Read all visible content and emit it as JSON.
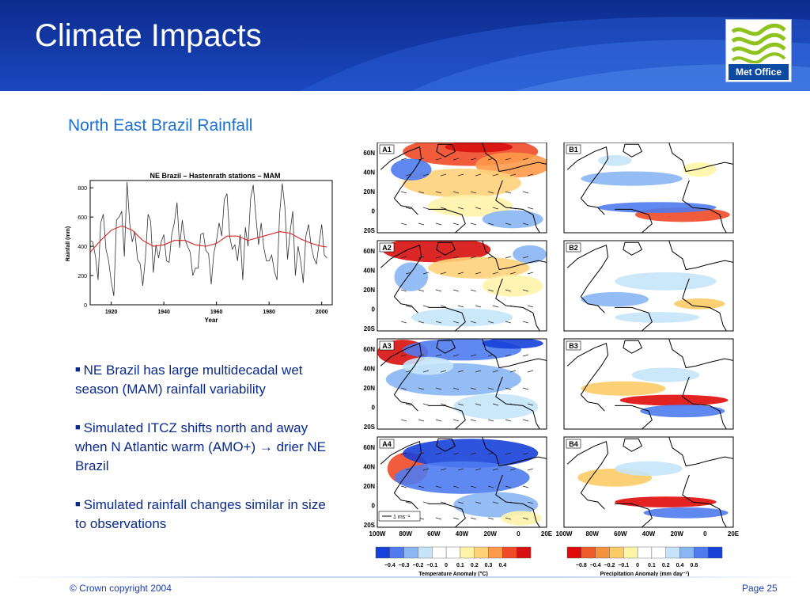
{
  "slide": {
    "title": "Climate Impacts",
    "subtitle": "North East Brazil Rainfall",
    "logo_text": "Met Office",
    "footer_copyright": "© Crown copyright 2004",
    "footer_page": "Page 25"
  },
  "bullets": [
    "NE Brazil has large multidecadal wet season (MAM) rainfall variability",
    "Simulated ITCZ shifts north and away when N Atlantic warm (AMO+) → drier NE Brazil",
    "Simulated rainfall changes similar in size to observations"
  ],
  "chart_data": {
    "type": "line",
    "title": "NE Brazil – Hastenrath stations – MAM",
    "xlabel": "Year",
    "ylabel": "Rainfall (mm)",
    "xlim": [
      1912,
      2004
    ],
    "ylim": [
      0,
      850
    ],
    "xticks": [
      1920,
      1940,
      1960,
      1980,
      2000
    ],
    "yticks": [
      0,
      200,
      400,
      600,
      800
    ],
    "grid": false,
    "series": [
      {
        "values": [
          [
            1912,
            440
          ],
          [
            1913,
            430
          ],
          [
            1914,
            330
          ],
          [
            1915,
            170
          ],
          [
            1916,
            560
          ],
          [
            1917,
            620
          ],
          [
            1918,
            380
          ],
          [
            1919,
            300
          ],
          [
            1920,
            160
          ],
          [
            1921,
            60
          ],
          [
            1922,
            580
          ],
          [
            1923,
            600
          ],
          [
            1924,
            640
          ],
          [
            1925,
            330
          ],
          [
            1926,
            840
          ],
          [
            1927,
            560
          ],
          [
            1928,
            430
          ],
          [
            1929,
            500
          ],
          [
            1930,
            310
          ],
          [
            1931,
            280
          ],
          [
            1932,
            130
          ],
          [
            1933,
            320
          ],
          [
            1934,
            620
          ],
          [
            1935,
            570
          ],
          [
            1936,
            220
          ],
          [
            1937,
            410
          ],
          [
            1938,
            320
          ],
          [
            1939,
            430
          ],
          [
            1940,
            480
          ],
          [
            1941,
            300
          ],
          [
            1942,
            290
          ],
          [
            1943,
            480
          ],
          [
            1944,
            560
          ],
          [
            1945,
            700
          ],
          [
            1946,
            390
          ],
          [
            1947,
            580
          ],
          [
            1948,
            450
          ],
          [
            1949,
            400
          ],
          [
            1950,
            360
          ],
          [
            1951,
            200
          ],
          [
            1952,
            250
          ],
          [
            1953,
            250
          ],
          [
            1954,
            480
          ],
          [
            1955,
            490
          ],
          [
            1956,
            370
          ],
          [
            1957,
            350
          ],
          [
            1958,
            140
          ],
          [
            1959,
            350
          ],
          [
            1960,
            440
          ],
          [
            1961,
            560
          ],
          [
            1962,
            470
          ],
          [
            1963,
            720
          ],
          [
            1964,
            760
          ],
          [
            1965,
            470
          ],
          [
            1966,
            380
          ],
          [
            1967,
            410
          ],
          [
            1968,
            300
          ],
          [
            1969,
            480
          ],
          [
            1970,
            170
          ],
          [
            1971,
            530
          ],
          [
            1972,
            400
          ],
          [
            1973,
            730
          ],
          [
            1974,
            820
          ],
          [
            1975,
            600
          ],
          [
            1976,
            410
          ],
          [
            1977,
            560
          ],
          [
            1978,
            390
          ],
          [
            1979,
            300
          ],
          [
            1980,
            300
          ],
          [
            1981,
            340
          ],
          [
            1982,
            230
          ],
          [
            1983,
            170
          ],
          [
            1984,
            620
          ],
          [
            1985,
            830
          ],
          [
            1986,
            670
          ],
          [
            1987,
            310
          ],
          [
            1988,
            500
          ],
          [
            1989,
            640
          ],
          [
            1990,
            200
          ],
          [
            1991,
            400
          ],
          [
            1992,
            300
          ],
          [
            1993,
            150
          ],
          [
            1994,
            470
          ],
          [
            1995,
            550
          ],
          [
            1996,
            400
          ],
          [
            1997,
            320
          ],
          [
            1998,
            280
          ],
          [
            1999,
            420
          ],
          [
            2000,
            550
          ],
          [
            2001,
            340
          ],
          [
            2002,
            320
          ]
        ],
        "color": "#333333"
      },
      {
        "values": [
          [
            1912,
            360
          ],
          [
            1916,
            440
          ],
          [
            1920,
            510
          ],
          [
            1924,
            540
          ],
          [
            1928,
            510
          ],
          [
            1932,
            440
          ],
          [
            1936,
            400
          ],
          [
            1940,
            410
          ],
          [
            1944,
            440
          ],
          [
            1948,
            440
          ],
          [
            1952,
            410
          ],
          [
            1956,
            400
          ],
          [
            1960,
            420
          ],
          [
            1964,
            470
          ],
          [
            1968,
            470
          ],
          [
            1972,
            440
          ],
          [
            1976,
            460
          ],
          [
            1980,
            480
          ],
          [
            1984,
            500
          ],
          [
            1988,
            490
          ],
          [
            1992,
            450
          ],
          [
            1996,
            420
          ],
          [
            2000,
            400
          ],
          [
            2002,
            395
          ]
        ],
        "color": "#dd2222"
      }
    ]
  },
  "maps": {
    "panels_a": [
      "A1",
      "A2",
      "A3",
      "A4"
    ],
    "panels_b": [
      "B1",
      "B2",
      "B3",
      "B4"
    ],
    "lat_labels": [
      "60N",
      "40N",
      "20N",
      "0",
      "20S"
    ],
    "lon_labels_a": [
      "100W",
      "80W",
      "60W",
      "40W",
      "20W",
      "0",
      "20E"
    ],
    "lon_labels_b": [
      "100W",
      "80W",
      "60W",
      "40W",
      "20W",
      "0",
      "20E"
    ],
    "vector_scale": "1 ms⁻¹",
    "temp_colorbar": {
      "labels": [
        "−0.4",
        "−0.3",
        "−0.2",
        "−0.1",
        "0",
        "0.1",
        "0.2",
        "0.3",
        "0.4"
      ],
      "colors": [
        "#1740d8",
        "#4f7bef",
        "#8ab6f4",
        "#c5e4fa",
        "#ffffff",
        "#ffffff",
        "#fff3a8",
        "#ffd27a",
        "#ff9a4a",
        "#f04a28",
        "#d81010"
      ],
      "title": "Temperature Anomaly (°C)"
    },
    "precip_colorbar": {
      "labels": [
        "−0.8",
        "−0.4",
        "−0.2",
        "−0.1",
        "0",
        "0.1",
        "0.2",
        "0.4",
        "0.8"
      ],
      "colors": [
        "#e00a0a",
        "#ef5a2a",
        "#f6923d",
        "#fccb66",
        "#fff5a6",
        "#ffffff",
        "#ffffff",
        "#c5e4fa",
        "#8ab6f4",
        "#4f7bef",
        "#1740d8"
      ],
      "title": "Precipitation Anomaly (mm day⁻¹)"
    }
  }
}
